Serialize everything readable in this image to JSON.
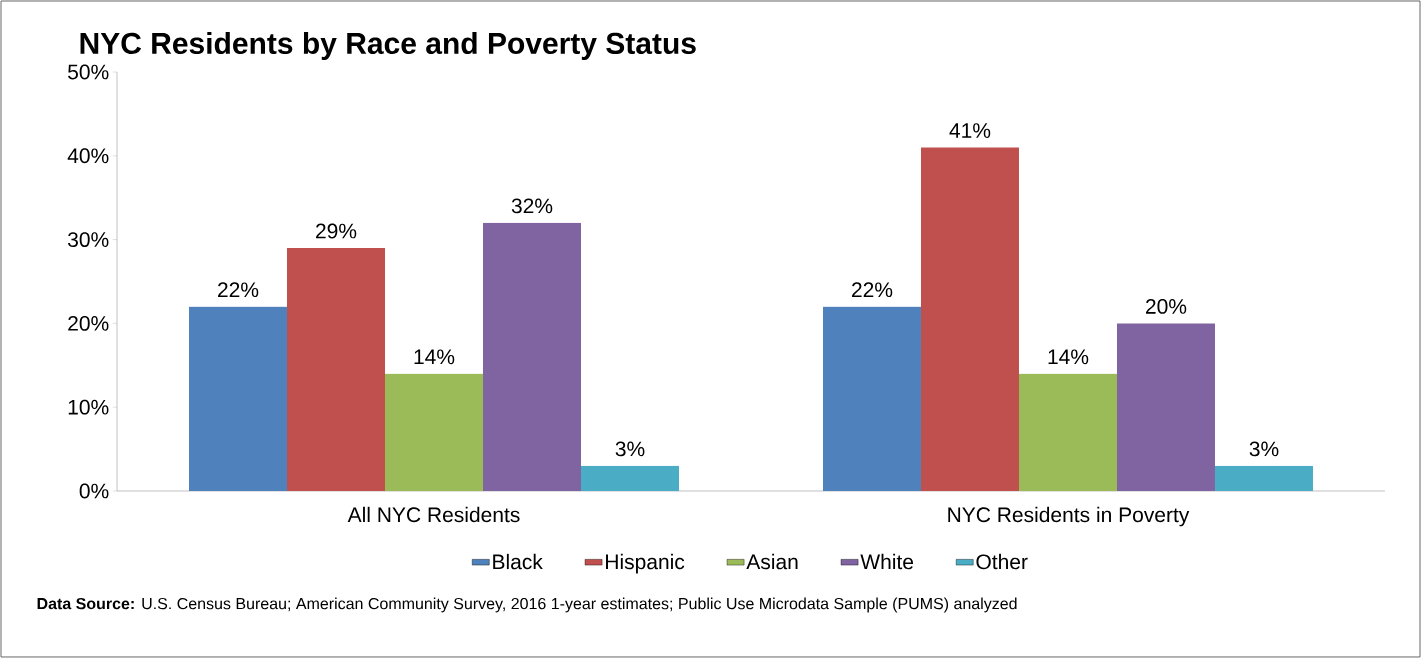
{
  "chart_data": {
    "type": "bar",
    "title": "NYC Residents by Race and Poverty Status",
    "categories": [
      "All NYC Residents",
      "NYC Residents in Poverty"
    ],
    "series": [
      {
        "name": "Black",
        "color": "#4f81bd",
        "values": [
          22,
          22
        ],
        "value_labels": [
          "22%",
          "22%"
        ]
      },
      {
        "name": "Hispanic",
        "color": "#c0504d",
        "values": [
          29,
          41
        ],
        "value_labels": [
          "29%",
          "41%"
        ]
      },
      {
        "name": "Asian",
        "color": "#9bbb59",
        "values": [
          14,
          14
        ],
        "value_labels": [
          "14%",
          "14%"
        ]
      },
      {
        "name": "White",
        "color": "#8064a2",
        "values": [
          32,
          20
        ],
        "value_labels": [
          "32%",
          "20%"
        ]
      },
      {
        "name": "Other",
        "color": "#4bacc6",
        "values": [
          3,
          3
        ],
        "value_labels": [
          "3%",
          "3%"
        ]
      }
    ],
    "ylim": [
      0,
      50
    ],
    "yticks": [
      {
        "value": 0,
        "label": "0%"
      },
      {
        "value": 10,
        "label": "10%"
      },
      {
        "value": 20,
        "label": "20%"
      },
      {
        "value": 30,
        "label": "30%"
      },
      {
        "value": 40,
        "label": "40%"
      },
      {
        "value": 50,
        "label": "50%"
      }
    ],
    "grid": false,
    "legend": "bottom",
    "annotations": [
      "**Data Source:** U.S. Census Bureau; American Community Survey, 2016 1-year estimates; Public Use Microdata Sample (PUMS) analyzed"
    ]
  }
}
